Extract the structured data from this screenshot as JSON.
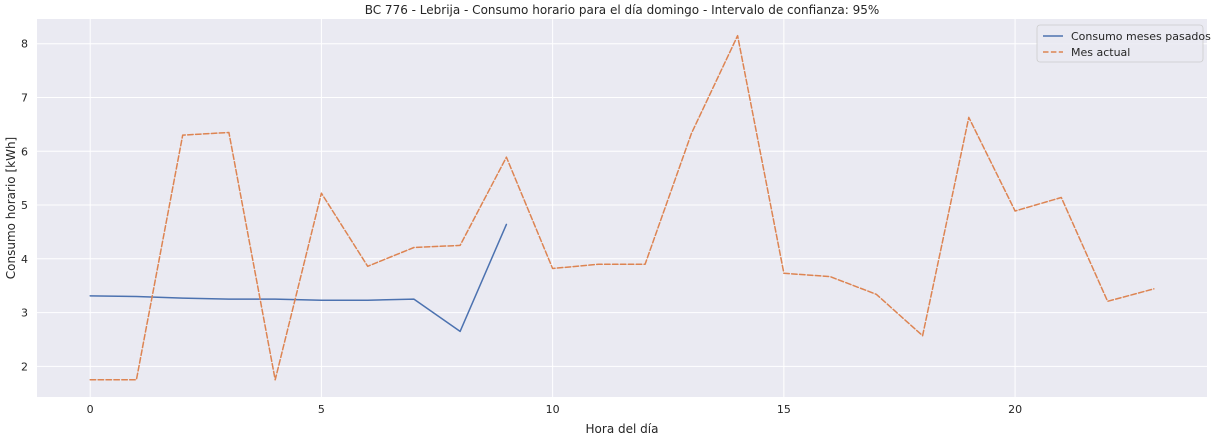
{
  "chart_data": {
    "type": "line",
    "title": "BC 776 - Lebrija - Consumo horario para el día domingo - Intervalo de confianza: 95%",
    "xlabel": "Hora del día",
    "ylabel": "Consumo horario [kWh]",
    "xlim": [
      -1.15,
      24.15
    ],
    "ylim": [
      1.43,
      8.46
    ],
    "xticks": [
      0,
      5,
      10,
      15,
      20
    ],
    "yticks": [
      2,
      3,
      4,
      5,
      6,
      7,
      8
    ],
    "grid": true,
    "legend_position": "top-right",
    "background_color": "#eaeaf2",
    "series": [
      {
        "name": "Consumo meses pasados",
        "color": "#4c72b0",
        "dash": "solid",
        "x": [
          0,
          1,
          2,
          3,
          4,
          5,
          6,
          7,
          8,
          9
        ],
        "values": [
          3.31,
          3.3,
          3.27,
          3.25,
          3.25,
          3.23,
          3.23,
          3.25,
          2.65,
          4.64
        ]
      },
      {
        "name": "Mes actual",
        "color": "#dd8452",
        "dash": "dashed",
        "x": [
          0,
          1,
          2,
          3,
          4,
          5,
          6,
          7,
          8,
          9,
          10,
          11,
          12,
          13,
          14,
          15,
          16,
          17,
          18,
          19,
          20,
          21,
          22,
          23
        ],
        "values": [
          1.75,
          1.75,
          6.3,
          6.35,
          1.75,
          5.22,
          3.86,
          4.21,
          4.25,
          5.89,
          3.82,
          3.9,
          3.9,
          6.33,
          8.15,
          3.73,
          3.67,
          3.34,
          2.57,
          6.63,
          4.89,
          5.14,
          3.21,
          3.44
        ]
      }
    ]
  }
}
